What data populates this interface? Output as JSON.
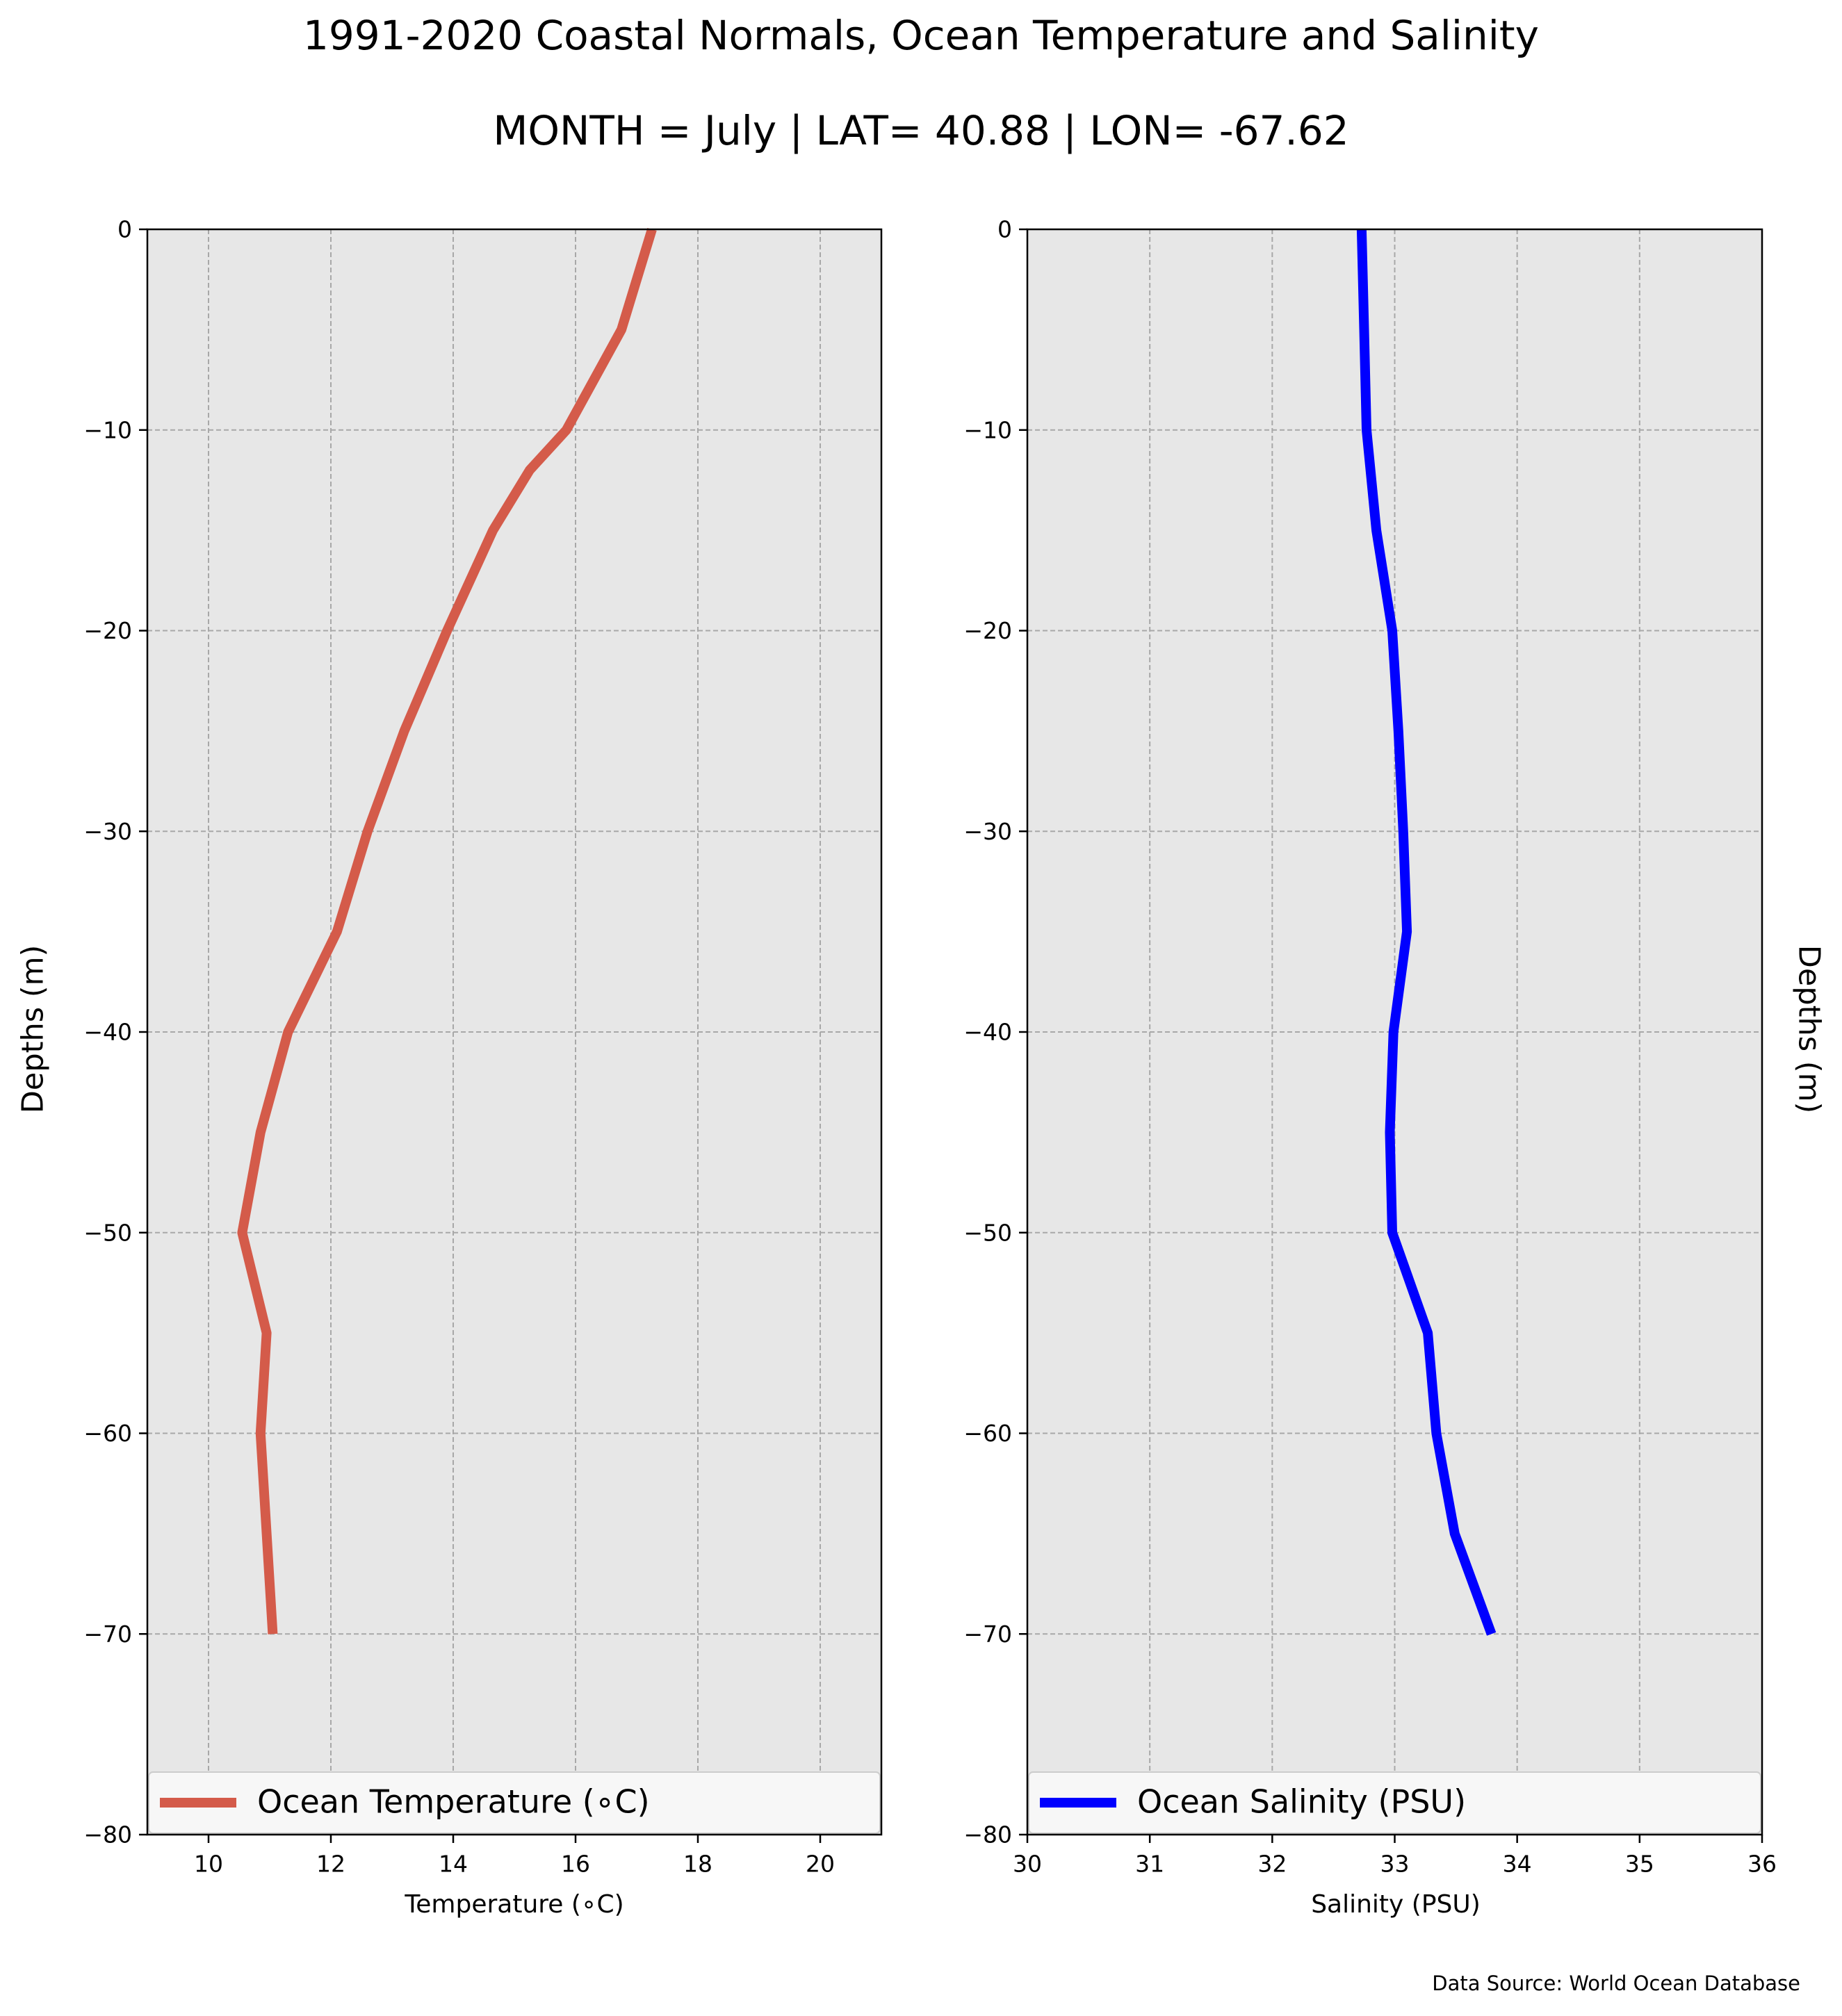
{
  "figure": {
    "title": "1991-2020 Coastal Normals, Ocean Temperature and Salinity",
    "subtitle": "MONTH = July | LAT= 40.88 | LON= -67.62",
    "source": "Data Source: World Ocean Database"
  },
  "chart_data": [
    {
      "type": "line",
      "xlabel": "Temperature ($^\\circ$C)",
      "xlabel_display": "Temperature (∘C)",
      "ylabel": "Depths (m)",
      "xlim": [
        9,
        21
      ],
      "ylim": [
        -80,
        0
      ],
      "xticks": [
        10,
        12,
        14,
        16,
        18,
        20
      ],
      "yticks": [
        0,
        -10,
        -20,
        -30,
        -40,
        -50,
        -60,
        -70,
        -80
      ],
      "ytick_labels": [
        "0",
        "−10",
        "−20",
        "−30",
        "−40",
        "−50",
        "−60",
        "−70",
        "−80"
      ],
      "grid": true,
      "legend_placement": "lower center",
      "series": [
        {
          "name": "Ocean Temperature (∘C)",
          "color": "#d45b4a",
          "x": [
            17.25,
            16.75,
            15.85,
            15.25,
            14.65,
            13.9,
            13.2,
            12.6,
            12.1,
            11.3,
            10.85,
            10.55,
            10.95,
            10.85,
            10.95,
            11.05
          ],
          "y": [
            0,
            -5,
            -10,
            -12,
            -15,
            -20,
            -25,
            -30,
            -35,
            -40,
            -45,
            -50,
            -55,
            -60,
            -65,
            -70
          ]
        }
      ]
    },
    {
      "type": "line",
      "xlabel": "Salinity (PSU)",
      "ylabel": "Depths (m)",
      "xlim": [
        30,
        36
      ],
      "ylim": [
        -80,
        0
      ],
      "xticks": [
        30,
        31,
        32,
        33,
        34,
        35,
        36
      ],
      "yticks": [
        0,
        -10,
        -20,
        -30,
        -40,
        -50,
        -60,
        -70,
        -80
      ],
      "ytick_labels": [
        "0",
        "−10",
        "−20",
        "−30",
        "−40",
        "−50",
        "−60",
        "−70",
        "−80"
      ],
      "grid": true,
      "legend_placement": "lower center",
      "series": [
        {
          "name": "Ocean Salinity (PSU)",
          "color": "#0000ff",
          "x": [
            32.73,
            32.75,
            32.77,
            32.85,
            32.98,
            33.03,
            33.07,
            33.1,
            32.99,
            32.96,
            32.98,
            33.27,
            33.34,
            33.49,
            33.79
          ],
          "y": [
            0,
            -5,
            -10,
            -15,
            -20,
            -25,
            -30,
            -35,
            -40,
            -45,
            -50,
            -55,
            -60,
            -65,
            -70
          ]
        }
      ]
    }
  ]
}
